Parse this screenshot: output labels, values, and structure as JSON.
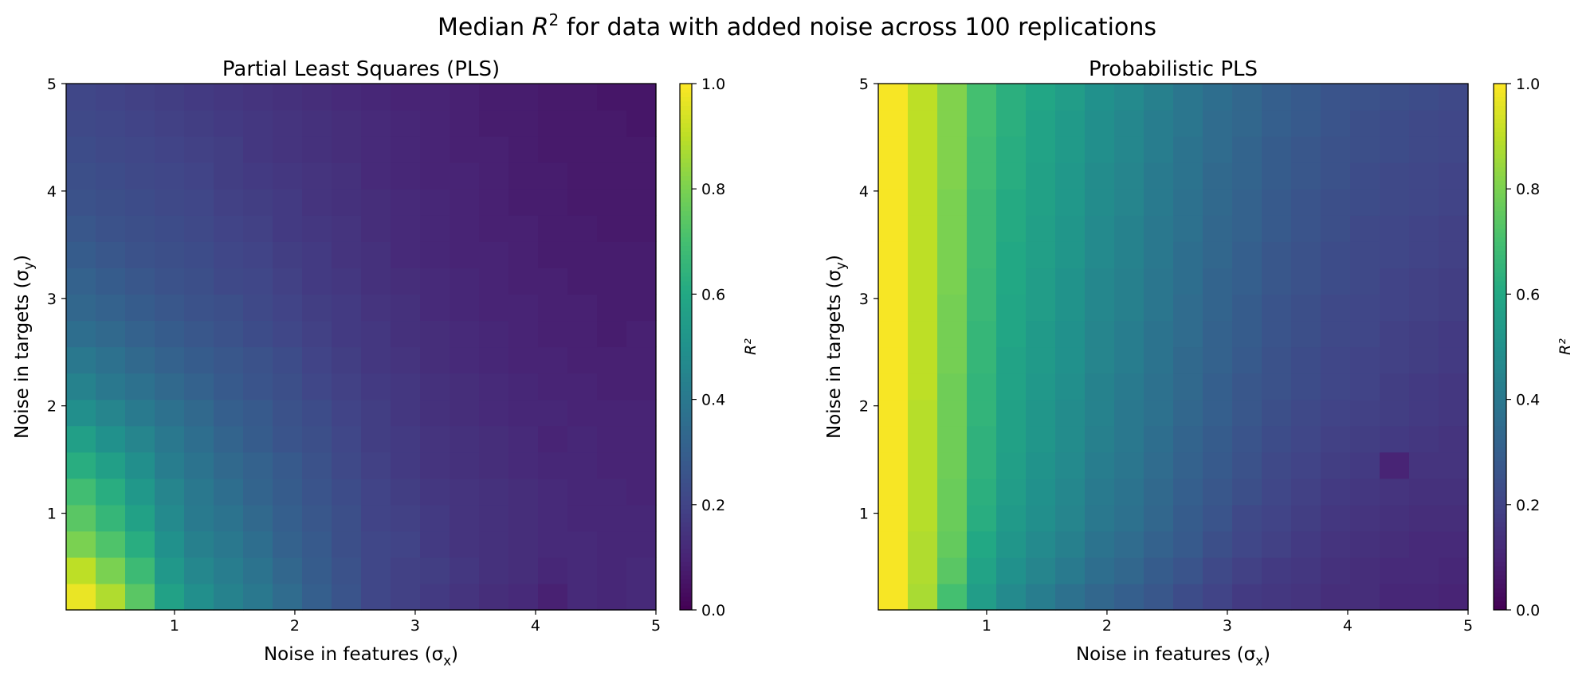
{
  "figure": {
    "title_prefix": "Median ",
    "title_var": "R",
    "title_sup": "2",
    "title_suffix": " for data with added noise across 100 replications"
  },
  "colormap": "viridis",
  "chart_data": [
    {
      "type": "heatmap",
      "title": "Partial Least Squares (PLS)",
      "xlabel": "Noise in features (σx)",
      "ylabel": "Noise in targets (σy)",
      "xlim": [
        0.1,
        5
      ],
      "ylim": [
        0.1,
        5
      ],
      "xticks": [
        1,
        2,
        3,
        4,
        5
      ],
      "yticks": [
        1,
        2,
        3,
        4,
        5
      ],
      "grid": false,
      "colorbar": {
        "label": "R²",
        "range": [
          0,
          1
        ],
        "ticks": [
          "0.0",
          "0.2",
          "0.4",
          "0.6",
          "0.8",
          "1.0"
        ]
      },
      "n_cols": 20,
      "n_rows": 20,
      "values": [
        [
          0.97,
          0.88,
          0.74,
          0.57,
          0.49,
          0.44,
          0.4,
          0.35,
          0.3,
          0.26,
          0.21,
          0.19,
          0.17,
          0.15,
          0.13,
          0.12,
          0.09,
          0.12,
          0.11,
          0.12
        ],
        [
          0.9,
          0.8,
          0.68,
          0.53,
          0.46,
          0.42,
          0.38,
          0.33,
          0.29,
          0.25,
          0.21,
          0.19,
          0.18,
          0.16,
          0.14,
          0.13,
          0.11,
          0.12,
          0.11,
          0.12
        ],
        [
          0.8,
          0.72,
          0.62,
          0.5,
          0.43,
          0.4,
          0.36,
          0.31,
          0.28,
          0.24,
          0.21,
          0.2,
          0.17,
          0.15,
          0.14,
          0.13,
          0.12,
          0.12,
          0.11,
          0.11
        ],
        [
          0.74,
          0.66,
          0.57,
          0.47,
          0.41,
          0.38,
          0.34,
          0.3,
          0.27,
          0.24,
          0.2,
          0.19,
          0.17,
          0.15,
          0.14,
          0.13,
          0.12,
          0.11,
          0.11,
          0.11
        ],
        [
          0.69,
          0.62,
          0.53,
          0.45,
          0.4,
          0.36,
          0.32,
          0.29,
          0.26,
          0.23,
          0.2,
          0.18,
          0.16,
          0.15,
          0.14,
          0.13,
          0.12,
          0.11,
          0.11,
          0.1
        ],
        [
          0.62,
          0.56,
          0.49,
          0.42,
          0.38,
          0.34,
          0.31,
          0.28,
          0.25,
          0.22,
          0.19,
          0.17,
          0.15,
          0.14,
          0.13,
          0.12,
          0.11,
          0.11,
          0.1,
          0.1
        ],
        [
          0.56,
          0.5,
          0.45,
          0.4,
          0.36,
          0.32,
          0.29,
          0.26,
          0.24,
          0.21,
          0.18,
          0.17,
          0.15,
          0.14,
          0.13,
          0.12,
          0.1,
          0.11,
          0.1,
          0.1
        ],
        [
          0.49,
          0.45,
          0.41,
          0.37,
          0.34,
          0.3,
          0.28,
          0.25,
          0.23,
          0.2,
          0.18,
          0.16,
          0.14,
          0.13,
          0.12,
          0.11,
          0.11,
          0.1,
          0.1,
          0.1
        ],
        [
          0.44,
          0.4,
          0.37,
          0.34,
          0.31,
          0.28,
          0.26,
          0.24,
          0.21,
          0.19,
          0.17,
          0.16,
          0.14,
          0.13,
          0.12,
          0.11,
          0.1,
          0.1,
          0.09,
          0.09
        ],
        [
          0.4,
          0.37,
          0.34,
          0.31,
          0.29,
          0.27,
          0.25,
          0.23,
          0.2,
          0.18,
          0.16,
          0.15,
          0.13,
          0.12,
          0.11,
          0.1,
          0.1,
          0.09,
          0.09,
          0.09
        ],
        [
          0.36,
          0.34,
          0.31,
          0.29,
          0.27,
          0.25,
          0.23,
          0.21,
          0.19,
          0.17,
          0.16,
          0.14,
          0.13,
          0.12,
          0.11,
          0.1,
          0.09,
          0.09,
          0.08,
          0.09
        ],
        [
          0.33,
          0.31,
          0.29,
          0.27,
          0.25,
          0.24,
          0.22,
          0.2,
          0.18,
          0.17,
          0.15,
          0.14,
          0.12,
          0.11,
          0.1,
          0.1,
          0.09,
          0.09,
          0.08,
          0.08
        ],
        [
          0.31,
          0.29,
          0.27,
          0.25,
          0.24,
          0.22,
          0.21,
          0.19,
          0.17,
          0.16,
          0.14,
          0.13,
          0.12,
          0.11,
          0.1,
          0.09,
          0.09,
          0.08,
          0.08,
          0.08
        ],
        [
          0.29,
          0.27,
          0.25,
          0.24,
          0.23,
          0.21,
          0.2,
          0.18,
          0.17,
          0.15,
          0.14,
          0.12,
          0.11,
          0.1,
          0.1,
          0.09,
          0.08,
          0.08,
          0.08,
          0.08
        ],
        [
          0.27,
          0.25,
          0.24,
          0.23,
          0.22,
          0.2,
          0.19,
          0.17,
          0.16,
          0.15,
          0.13,
          0.12,
          0.11,
          0.1,
          0.09,
          0.09,
          0.08,
          0.08,
          0.07,
          0.07
        ],
        [
          0.25,
          0.24,
          0.23,
          0.22,
          0.21,
          0.19,
          0.18,
          0.17,
          0.15,
          0.14,
          0.13,
          0.12,
          0.11,
          0.1,
          0.09,
          0.08,
          0.08,
          0.07,
          0.07,
          0.07
        ],
        [
          0.24,
          0.23,
          0.22,
          0.21,
          0.2,
          0.18,
          0.17,
          0.16,
          0.15,
          0.14,
          0.12,
          0.11,
          0.1,
          0.1,
          0.09,
          0.08,
          0.08,
          0.07,
          0.07,
          0.07
        ],
        [
          0.23,
          0.22,
          0.21,
          0.2,
          0.19,
          0.18,
          0.16,
          0.15,
          0.14,
          0.13,
          0.12,
          0.11,
          0.1,
          0.09,
          0.09,
          0.08,
          0.07,
          0.07,
          0.07,
          0.07
        ],
        [
          0.22,
          0.21,
          0.2,
          0.19,
          0.18,
          0.17,
          0.16,
          0.15,
          0.14,
          0.13,
          0.12,
          0.11,
          0.1,
          0.09,
          0.08,
          0.08,
          0.07,
          0.07,
          0.07,
          0.06
        ],
        [
          0.21,
          0.2,
          0.19,
          0.18,
          0.17,
          0.16,
          0.15,
          0.14,
          0.13,
          0.12,
          0.11,
          0.1,
          0.1,
          0.09,
          0.08,
          0.08,
          0.07,
          0.07,
          0.06,
          0.06
        ]
      ]
    },
    {
      "type": "heatmap",
      "title": "Probabilistic PLS",
      "xlabel": "Noise in features (σx)",
      "ylabel": "Noise in targets (σy)",
      "xlim": [
        0.1,
        5
      ],
      "ylim": [
        0.1,
        5
      ],
      "xticks": [
        1,
        2,
        3,
        4,
        5
      ],
      "yticks": [
        1,
        2,
        3,
        4,
        5
      ],
      "grid": false,
      "colorbar": {
        "label": "R²",
        "range": [
          0,
          1
        ],
        "ticks": [
          "0.0",
          "0.2",
          "0.4",
          "0.6",
          "0.8",
          "1.0"
        ]
      },
      "n_cols": 20,
      "n_rows": 20,
      "values": [
        [
          0.99,
          0.87,
          0.7,
          0.55,
          0.47,
          0.42,
          0.37,
          0.33,
          0.3,
          0.27,
          0.23,
          0.2,
          0.17,
          0.16,
          0.15,
          0.13,
          0.13,
          0.11,
          0.11,
          0.1
        ],
        [
          0.99,
          0.88,
          0.74,
          0.58,
          0.5,
          0.45,
          0.41,
          0.36,
          0.33,
          0.29,
          0.26,
          0.22,
          0.19,
          0.17,
          0.16,
          0.14,
          0.13,
          0.12,
          0.12,
          0.11
        ],
        [
          0.99,
          0.88,
          0.76,
          0.6,
          0.52,
          0.47,
          0.43,
          0.38,
          0.35,
          0.31,
          0.28,
          0.24,
          0.21,
          0.19,
          0.17,
          0.15,
          0.14,
          0.13,
          0.12,
          0.12
        ],
        [
          0.99,
          0.89,
          0.77,
          0.62,
          0.54,
          0.49,
          0.45,
          0.4,
          0.37,
          0.33,
          0.29,
          0.26,
          0.22,
          0.2,
          0.18,
          0.16,
          0.15,
          0.14,
          0.13,
          0.13
        ],
        [
          0.99,
          0.89,
          0.77,
          0.63,
          0.55,
          0.5,
          0.46,
          0.41,
          0.38,
          0.34,
          0.3,
          0.27,
          0.24,
          0.21,
          0.19,
          0.17,
          0.16,
          0.15,
          0.14,
          0.14
        ],
        [
          0.99,
          0.89,
          0.78,
          0.64,
          0.56,
          0.51,
          0.47,
          0.42,
          0.39,
          0.35,
          0.31,
          0.28,
          0.25,
          0.22,
          0.2,
          0.18,
          0.17,
          0.1,
          0.15,
          0.15
        ],
        [
          0.99,
          0.89,
          0.78,
          0.64,
          0.57,
          0.52,
          0.48,
          0.43,
          0.4,
          0.36,
          0.32,
          0.29,
          0.26,
          0.23,
          0.21,
          0.19,
          0.18,
          0.17,
          0.16,
          0.15
        ],
        [
          0.99,
          0.89,
          0.78,
          0.65,
          0.57,
          0.52,
          0.48,
          0.44,
          0.4,
          0.37,
          0.33,
          0.3,
          0.27,
          0.24,
          0.22,
          0.2,
          0.19,
          0.18,
          0.17,
          0.16
        ],
        [
          0.99,
          0.9,
          0.78,
          0.65,
          0.58,
          0.53,
          0.49,
          0.44,
          0.41,
          0.37,
          0.34,
          0.3,
          0.27,
          0.25,
          0.23,
          0.21,
          0.2,
          0.18,
          0.17,
          0.16
        ],
        [
          0.99,
          0.9,
          0.79,
          0.66,
          0.58,
          0.54,
          0.5,
          0.45,
          0.42,
          0.38,
          0.34,
          0.31,
          0.28,
          0.25,
          0.23,
          0.21,
          0.2,
          0.19,
          0.18,
          0.17
        ],
        [
          0.99,
          0.9,
          0.79,
          0.66,
          0.59,
          0.54,
          0.5,
          0.45,
          0.42,
          0.38,
          0.35,
          0.31,
          0.29,
          0.26,
          0.24,
          0.22,
          0.21,
          0.19,
          0.18,
          0.17
        ],
        [
          0.99,
          0.9,
          0.79,
          0.67,
          0.59,
          0.55,
          0.51,
          0.46,
          0.43,
          0.39,
          0.35,
          0.32,
          0.29,
          0.26,
          0.24,
          0.22,
          0.21,
          0.2,
          0.19,
          0.18
        ],
        [
          0.99,
          0.9,
          0.8,
          0.67,
          0.6,
          0.55,
          0.51,
          0.46,
          0.43,
          0.39,
          0.36,
          0.32,
          0.3,
          0.27,
          0.25,
          0.23,
          0.22,
          0.2,
          0.19,
          0.18
        ],
        [
          0.99,
          0.9,
          0.8,
          0.68,
          0.6,
          0.56,
          0.52,
          0.47,
          0.44,
          0.4,
          0.36,
          0.33,
          0.3,
          0.27,
          0.25,
          0.23,
          0.22,
          0.21,
          0.2,
          0.19
        ],
        [
          0.99,
          0.9,
          0.8,
          0.68,
          0.61,
          0.56,
          0.52,
          0.47,
          0.44,
          0.4,
          0.37,
          0.33,
          0.31,
          0.28,
          0.26,
          0.24,
          0.22,
          0.21,
          0.2,
          0.19
        ],
        [
          0.99,
          0.9,
          0.8,
          0.68,
          0.61,
          0.57,
          0.53,
          0.48,
          0.45,
          0.41,
          0.37,
          0.34,
          0.31,
          0.28,
          0.26,
          0.24,
          0.23,
          0.22,
          0.21,
          0.2
        ],
        [
          0.99,
          0.9,
          0.81,
          0.69,
          0.62,
          0.57,
          0.53,
          0.48,
          0.45,
          0.41,
          0.38,
          0.34,
          0.32,
          0.29,
          0.27,
          0.25,
          0.23,
          0.22,
          0.21,
          0.2
        ],
        [
          0.99,
          0.9,
          0.81,
          0.69,
          0.62,
          0.58,
          0.54,
          0.49,
          0.46,
          0.42,
          0.38,
          0.35,
          0.32,
          0.29,
          0.27,
          0.25,
          0.24,
          0.23,
          0.22,
          0.21
        ],
        [
          0.99,
          0.9,
          0.81,
          0.7,
          0.63,
          0.58,
          0.54,
          0.49,
          0.46,
          0.42,
          0.39,
          0.35,
          0.33,
          0.3,
          0.28,
          0.26,
          0.24,
          0.23,
          0.22,
          0.21
        ],
        [
          0.99,
          0.9,
          0.81,
          0.7,
          0.63,
          0.59,
          0.55,
          0.5,
          0.47,
          0.43,
          0.39,
          0.36,
          0.33,
          0.3,
          0.28,
          0.26,
          0.25,
          0.24,
          0.23,
          0.22
        ]
      ]
    }
  ]
}
